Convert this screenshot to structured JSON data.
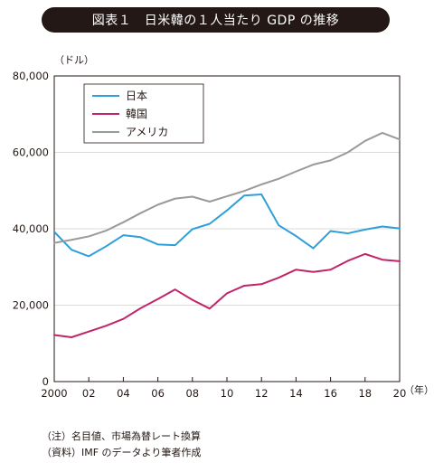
{
  "title": "図表１　日米韓の１人当たり GDP の推移",
  "chart_data": {
    "type": "line",
    "y_unit": "（ドル）",
    "x_unit": "（年）",
    "x": [
      2000,
      2001,
      2002,
      2003,
      2004,
      2005,
      2006,
      2007,
      2008,
      2009,
      2010,
      2011,
      2012,
      2013,
      2014,
      2015,
      2016,
      2017,
      2018,
      2019,
      2020
    ],
    "x_tick_values": [
      2000,
      2002,
      2004,
      2006,
      2008,
      2010,
      2012,
      2014,
      2016,
      2018,
      2020
    ],
    "x_tick_labels": [
      "2000",
      "02",
      "04",
      "06",
      "08",
      "10",
      "12",
      "14",
      "16",
      "18",
      "20"
    ],
    "y_ticks": [
      "0",
      "20,000",
      "40,000",
      "60,000",
      "80,000"
    ],
    "ylim": [
      0,
      80000
    ],
    "xlim": [
      2000,
      2020
    ],
    "grid": "horizontal",
    "legend_position": "top-left",
    "series": [
      {
        "name": "日本",
        "color": "#2e9fd8",
        "values": [
          39200,
          34500,
          32800,
          35400,
          38300,
          37800,
          35900,
          35700,
          39900,
          41300,
          44800,
          48700,
          49000,
          40900,
          38100,
          34900,
          39400,
          38800,
          39800,
          40600,
          40100
        ]
      },
      {
        "name": "韓国",
        "color": "#c1246a",
        "values": [
          12200,
          11600,
          13100,
          14600,
          16400,
          19200,
          21600,
          24100,
          21400,
          19100,
          23100,
          25100,
          25500,
          27200,
          29300,
          28700,
          29300,
          31600,
          33400,
          31900,
          31500
        ]
      },
      {
        "name": "アメリカ",
        "color": "#9a9a9a",
        "values": [
          36300,
          37100,
          38000,
          39500,
          41700,
          44100,
          46300,
          47900,
          48400,
          47100,
          48500,
          49900,
          51600,
          53100,
          55000,
          56800,
          57900,
          60000,
          63000,
          65100,
          63400
        ]
      }
    ]
  },
  "notes": {
    "note": "（注）名目値、市場為替レート換算",
    "source": "（資料）IMF のデータより筆者作成"
  }
}
